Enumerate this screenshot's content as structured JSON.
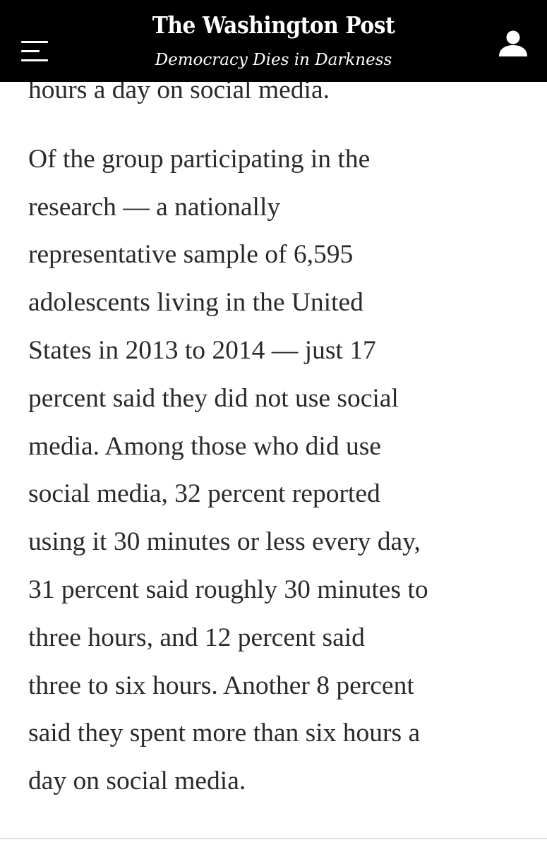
{
  "header": {
    "masthead": "The Washington Post",
    "tagline": "Democracy Dies in Darkness",
    "menu_icon": "hamburger-menu-icon",
    "user_icon": "user-account-icon"
  },
  "article": {
    "partial_line": "hours a day on social media.",
    "lines": [
      "Of the group participating in the",
      "research — a nationally",
      "representative sample of 6,595",
      "adolescents living in the United",
      "States in 2013 to 2014 — just 17",
      "percent said they did not use social",
      "media. Among those who did use",
      "social media, 32 percent reported",
      "using it 30 minutes or less every day,",
      "31 percent said roughly 30 minutes to",
      "three hours, and 12 percent said",
      "three to six hours. Another 8 percent",
      "said they spent more than six hours a",
      "day on social media."
    ]
  },
  "colors": {
    "header_bg": "#000000",
    "header_text": "#ffffff",
    "body_text": "#2a2a2a",
    "page_bg": "#ffffff"
  }
}
